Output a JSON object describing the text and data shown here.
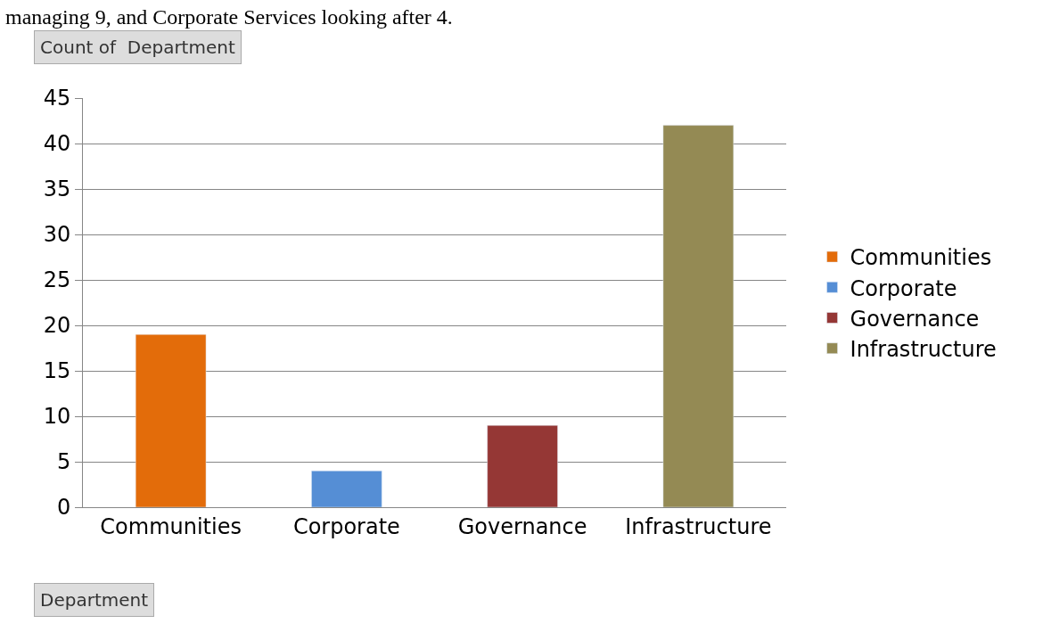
{
  "chart_data": {
    "type": "bar",
    "categories": [
      "Communities",
      "Corporate",
      "Governance",
      "Infrastructure"
    ],
    "series": [
      {
        "name": "Communities",
        "color": "#e36c0a",
        "values": [
          19,
          null,
          null,
          null
        ]
      },
      {
        "name": "Corporate",
        "color": "#558ed5",
        "values": [
          null,
          4,
          null,
          null
        ]
      },
      {
        "name": "Governance",
        "color": "#953735",
        "values": [
          null,
          null,
          9,
          null
        ]
      },
      {
        "name": "Infrastructure",
        "color": "#948a54",
        "values": [
          null,
          null,
          null,
          42
        ]
      }
    ],
    "ylim": [
      0,
      45
    ],
    "yticks": [
      0,
      5,
      10,
      15,
      20,
      25,
      30,
      35,
      40,
      45
    ],
    "grid": "y",
    "legend": "right",
    "annotations": [
      "managing 9, and Corporate Services looking after 4.",
      "Count of  Department",
      "Department"
    ]
  }
}
